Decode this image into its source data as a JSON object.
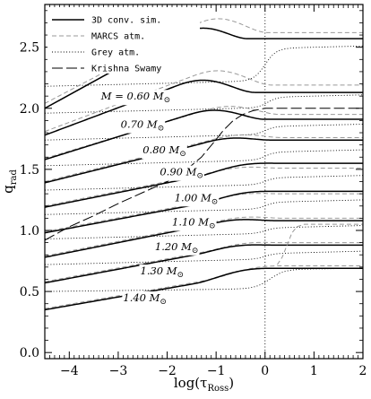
{
  "chart_data": {
    "type": "line",
    "title": "",
    "xlabel_main": "log(τ",
    "xlabel_sub": "Ross",
    "xlabel_close": ")",
    "ylabel_main": "q",
    "ylabel_sub": "rad",
    "xlim": [
      -4.5,
      2.0
    ],
    "ylim": [
      -0.05,
      2.85
    ],
    "xticks": [
      -4,
      -3,
      -2,
      -1,
      0,
      1,
      2
    ],
    "xtick_labels": [
      "−4",
      "−3",
      "−2",
      "−1",
      "0",
      "1",
      "2"
    ],
    "yticks": [
      0.0,
      0.5,
      1.0,
      1.5,
      2.0,
      2.5
    ],
    "ytick_labels": [
      "0.0",
      "0.5",
      "1.0",
      "1.5",
      "2.0",
      "2.5"
    ],
    "reference_line_x": 0,
    "legend": {
      "placement": "top-left",
      "entries": [
        {
          "label": "3D conv. sim.",
          "style": "solid"
        },
        {
          "label": "MARCS atm.",
          "style": "short-dash"
        },
        {
          "label": "Grey atm.",
          "style": "dotted"
        },
        {
          "label": "Krishna Swamy",
          "style": "long-dash"
        }
      ]
    },
    "mass_labels": [
      {
        "text": "M = 0.60 M",
        "x": -3.35,
        "y": 2.07
      },
      {
        "text": "0.70 M",
        "x": -2.95,
        "y": 1.84
      },
      {
        "text": "0.80 M",
        "x": -2.5,
        "y": 1.63
      },
      {
        "text": "0.90 M",
        "x": -2.15,
        "y": 1.45
      },
      {
        "text": "1.00 M",
        "x": -1.85,
        "y": 1.24
      },
      {
        "text": "1.10 M",
        "x": -1.9,
        "y": 1.04
      },
      {
        "text": "1.20 M",
        "x": -2.25,
        "y": 0.84
      },
      {
        "text": "1.30 M",
        "x": -2.55,
        "y": 0.64
      },
      {
        "text": "1.40 M",
        "x": -2.9,
        "y": 0.42
      }
    ],
    "mass_symbol": "⊙",
    "series": [
      {
        "mass": 0.6,
        "sim": {
          "y0": 2.0,
          "k": 0.22,
          "ypl": 2.57,
          "x1": -0.35
        },
        "marcs": {
          "y0": 2.04,
          "k": 0.21,
          "ypl": 2.62,
          "x1": 0.05
        },
        "grey": {
          "y0": 2.18,
          "k": 0.01,
          "ypl": 2.49,
          "xs": 0.0,
          "w": 0.35
        }
      },
      {
        "mass": 0.7,
        "sim": {
          "y0": 1.78,
          "k": 0.15,
          "ypl": 2.13,
          "x1": -0.2
        },
        "marcs": {
          "y0": 1.81,
          "k": 0.15,
          "ypl": 2.19,
          "x1": 0.15
        },
        "grey": {
          "y0": 1.96,
          "k": 0.01,
          "ypl": 2.09,
          "xs": 0.05,
          "w": 0.3
        }
      },
      {
        "mass": 0.8,
        "sim": {
          "y0": 1.58,
          "k": 0.125,
          "ypl": 1.91,
          "x1": 0.0
        },
        "marcs": {
          "y0": 1.59,
          "k": 0.12,
          "ypl": 1.95,
          "x1": 0.3
        },
        "grey": {
          "y0": 1.74,
          "k": 0.01,
          "ypl": 1.85,
          "xs": 0.0,
          "w": 0.3
        }
      },
      {
        "mass": 0.9,
        "sim": {
          "y0": 1.39,
          "k": 0.1,
          "ypl": 1.74,
          "x1": 0.1
        },
        "marcs": {
          "y0": 1.4,
          "k": 0.1,
          "ypl": 1.76,
          "x1": 0.35
        },
        "grey": {
          "y0": 1.53,
          "k": 0.01,
          "ypl": 1.64,
          "xs": 0.0,
          "w": 0.3
        }
      },
      {
        "mass": 1.0,
        "sim": {
          "y0": 1.19,
          "k": 0.08,
          "ypl": 1.55,
          "x1": 0.2
        },
        "marcs": {
          "y0": 1.2,
          "k": 0.08,
          "ypl": 1.51,
          "x1": 0.3
        },
        "grey": {
          "y0": 1.33,
          "k": 0.01,
          "ypl": 1.43,
          "xs": 0.0,
          "w": 0.3
        }
      },
      {
        "mass": 1.1,
        "sim": {
          "y0": 0.98,
          "k": 0.075,
          "ypl": 1.32,
          "x1": 0.25
        },
        "marcs": {
          "y0": 0.99,
          "k": 0.075,
          "ypl": 1.3,
          "x1": 0.3
        },
        "grey": {
          "y0": 1.13,
          "k": 0.01,
          "ypl": 1.23,
          "xs": 0.0,
          "w": 0.3
        }
      },
      {
        "mass": 1.2,
        "sim": {
          "y0": 0.78,
          "k": 0.08,
          "ypl": 1.08,
          "x1": 0.2
        },
        "marcs": {
          "y0": 0.79,
          "k": 0.08,
          "ypl": 1.1,
          "x1": 0.35
        },
        "grey": {
          "y0": 0.93,
          "k": 0.01,
          "ypl": 1.02,
          "xs": 0.0,
          "w": 0.3
        }
      },
      {
        "mass": 1.3,
        "sim": {
          "y0": 0.57,
          "k": 0.075,
          "ypl": 0.88,
          "x1": 0.15
        },
        "marcs": {
          "y0": 0.58,
          "k": 0.075,
          "ypl": 0.9,
          "x1": 0.35
        },
        "grey": {
          "y0": 0.72,
          "k": 0.01,
          "ypl": 0.81,
          "xs": 0.0,
          "w": 0.3
        }
      },
      {
        "mass": 1.4,
        "sim": {
          "y0": 0.35,
          "k": 0.07,
          "ypl": 0.69,
          "x1": 0.15
        },
        "marcs": {
          "y0": 0.36,
          "k": 0.07,
          "ypl": 0.71,
          "x1": 0.4
        },
        "grey": {
          "y0": 0.5,
          "k": 0.005,
          "ypl": 0.68,
          "xs": 0.1,
          "w": 0.45
        }
      }
    ],
    "krishna_swamy": [
      [
        -4.5,
        0.92
      ],
      [
        -4.0,
        1.03
      ],
      [
        -3.5,
        1.12
      ],
      [
        -3.0,
        1.22
      ],
      [
        -2.5,
        1.31
      ],
      [
        -2.0,
        1.4
      ],
      [
        -1.6,
        1.5
      ],
      [
        -1.3,
        1.6
      ],
      [
        -1.05,
        1.72
      ],
      [
        -0.85,
        1.82
      ],
      [
        -0.65,
        1.9
      ],
      [
        -0.45,
        1.95
      ],
      [
        -0.25,
        1.98
      ],
      [
        0.0,
        2.0
      ],
      [
        0.5,
        2.0
      ],
      [
        2.0,
        2.0
      ]
    ],
    "krishna_swamy_lower": [
      [
        0.25,
        0.72
      ],
      [
        0.35,
        0.78
      ],
      [
        0.45,
        0.88
      ],
      [
        0.55,
        0.98
      ],
      [
        0.65,
        1.03
      ],
      [
        0.8,
        1.05
      ],
      [
        2.0,
        1.05
      ]
    ]
  }
}
